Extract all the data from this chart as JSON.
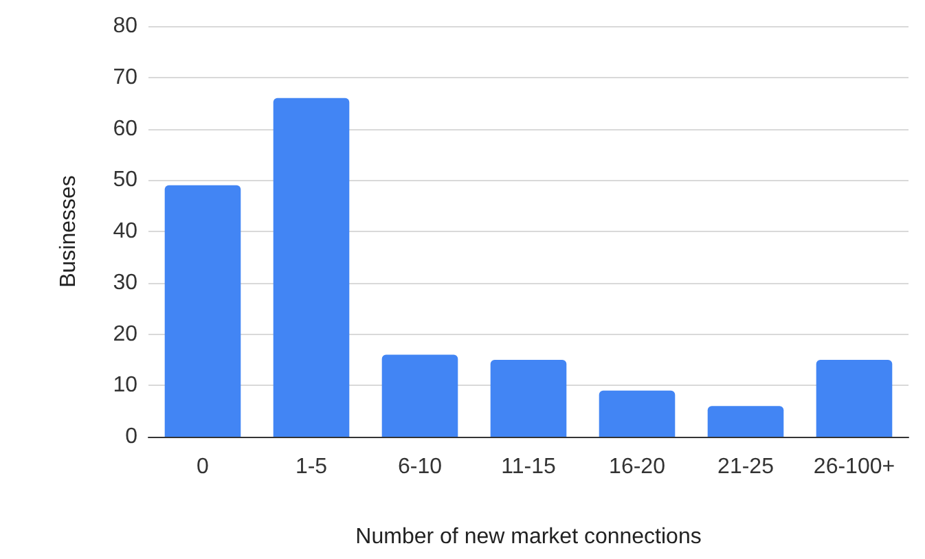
{
  "chart_data": {
    "type": "bar",
    "xlabel": "Number of new market connections",
    "ylabel": "Businesses",
    "categories": [
      "0",
      "1-5",
      "6-10",
      "11-15",
      "16-20",
      "21-25",
      "26-100+"
    ],
    "values": [
      49,
      66,
      16,
      15,
      9,
      6,
      15
    ],
    "color": "#4285f4",
    "ylim": [
      0,
      80
    ],
    "yticks": [
      0,
      10,
      20,
      30,
      40,
      50,
      60,
      70,
      80
    ],
    "grid": "y"
  }
}
